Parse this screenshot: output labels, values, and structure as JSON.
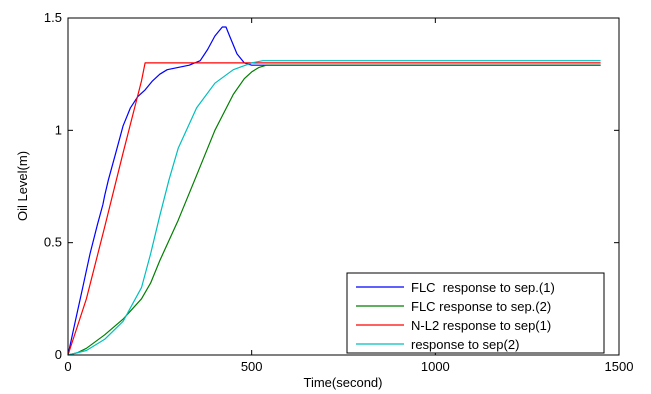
{
  "chart_data": {
    "type": "line",
    "xlabel": "Time(second)",
    "ylabel": "Oil Level(m)",
    "xlim": [
      0,
      1500
    ],
    "ylim": [
      0,
      1.5
    ],
    "xticks": [
      0,
      500,
      1000,
      1500
    ],
    "xtick_labels": [
      "0",
      "500",
      "1000",
      "1500"
    ],
    "yticks": [
      0,
      0.5,
      1,
      1.5
    ],
    "ytick_labels": [
      "0",
      "0.5",
      "1",
      "1.5"
    ],
    "grid": false,
    "legend_position": "bottom-right",
    "series": [
      {
        "name": "FLC  response to sep.(1)",
        "color": "#0000ff",
        "x": [
          0,
          20,
          40,
          60,
          80,
          95,
          100,
          110,
          130,
          150,
          170,
          190,
          210,
          230,
          250,
          270,
          300,
          330,
          360,
          380,
          400,
          420,
          430,
          440,
          460,
          480,
          500,
          550,
          600,
          800,
          1000,
          1200,
          1450
        ],
        "y": [
          0,
          0.15,
          0.3,
          0.45,
          0.58,
          0.67,
          0.71,
          0.78,
          0.9,
          1.02,
          1.1,
          1.15,
          1.18,
          1.22,
          1.25,
          1.27,
          1.28,
          1.29,
          1.31,
          1.36,
          1.42,
          1.46,
          1.46,
          1.42,
          1.34,
          1.3,
          1.29,
          1.29,
          1.29,
          1.29,
          1.29,
          1.29,
          1.29
        ]
      },
      {
        "name": "FLC response to sep.(2)",
        "color": "#007f00",
        "x": [
          0,
          25,
          50,
          100,
          150,
          200,
          225,
          250,
          300,
          350,
          400,
          450,
          480,
          500,
          520,
          540,
          560,
          580,
          600,
          800,
          1000,
          1200,
          1450
        ],
        "y": [
          0,
          0.01,
          0.03,
          0.09,
          0.16,
          0.25,
          0.32,
          0.42,
          0.6,
          0.8,
          1.0,
          1.16,
          1.23,
          1.26,
          1.28,
          1.29,
          1.29,
          1.29,
          1.29,
          1.29,
          1.29,
          1.29,
          1.29
        ]
      },
      {
        "name": "N-L2 response to sep(1)",
        "color": "#ff0000",
        "x": [
          0,
          50,
          100,
          150,
          200,
          210,
          250,
          500,
          1000,
          1450
        ],
        "y": [
          0,
          0.25,
          0.57,
          0.9,
          1.22,
          1.3,
          1.3,
          1.3,
          1.3,
          1.3
        ]
      },
      {
        "name": "response to sep(2)",
        "color": "#00bfbf",
        "x": [
          0,
          50,
          100,
          150,
          200,
          225,
          250,
          275,
          300,
          350,
          400,
          450,
          500,
          530,
          550,
          600,
          800,
          1000,
          1200,
          1450
        ],
        "y": [
          0,
          0.02,
          0.07,
          0.15,
          0.3,
          0.45,
          0.62,
          0.78,
          0.92,
          1.1,
          1.21,
          1.27,
          1.3,
          1.31,
          1.31,
          1.31,
          1.31,
          1.31,
          1.31,
          1.31
        ]
      }
    ]
  }
}
